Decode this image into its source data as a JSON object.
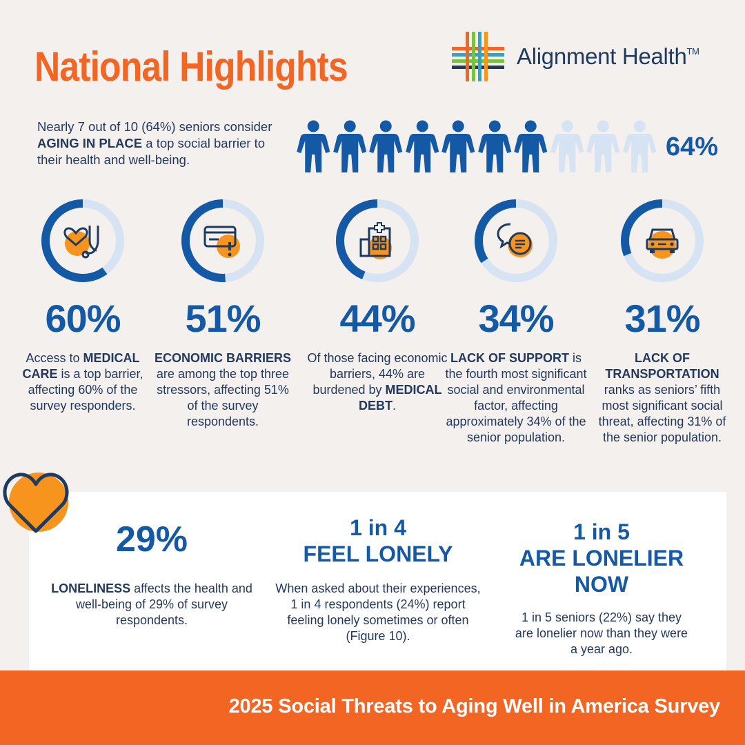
{
  "header": {
    "title": "National Highlights",
    "brand_name": "Alignment Health",
    "brand_tm": "TM"
  },
  "aging_in_place": {
    "text_before": "Nearly 7 out of 10 (64%) seniors consider ",
    "emphasis": "AGING IN PLACE",
    "text_after": " a top social barrier to their health and well-being.",
    "percent_label": "64%",
    "filled_people": 7,
    "total_people": 10
  },
  "stats": [
    {
      "value": "60%",
      "fraction": 0.6,
      "icon": "heart-stethoscope-icon",
      "pre": "Access to ",
      "bold": "MEDICAL CARE",
      "post": " is a top barrier, affecting 60% of the survey responders."
    },
    {
      "value": "51%",
      "fraction": 0.51,
      "icon": "credit-card-alert-icon",
      "pre": "",
      "bold": "ECONOMIC BARRIERS",
      "post": " are among the top three stressors, affecting 51% of the survey respondents."
    },
    {
      "value": "44%",
      "fraction": 0.44,
      "icon": "hospital-icon",
      "pre": "Of those facing economic barriers, 44% are burdened by ",
      "bold": "MEDICAL DEBT",
      "post": "."
    },
    {
      "value": "34%",
      "fraction": 0.34,
      "icon": "chat-bubbles-icon",
      "pre": "",
      "bold": "LACK OF SUPPORT",
      "post": " is the fourth most significant social and environmental factor, affecting approximately 34% of the senior population."
    },
    {
      "value": "31%",
      "fraction": 0.31,
      "icon": "car-icon",
      "pre": "",
      "bold": "LACK OF TRANSPORTATION",
      "post": " ranks as seniors’ fifth most significant social threat, affecting 31% of the senior population."
    }
  ],
  "loneliness": {
    "col1": {
      "head": "29%",
      "bold": "LONELINESS",
      "post": " affects the health and well-being of 29% of survey respondents."
    },
    "col2": {
      "head_line1": "1 in 4",
      "head_line2": "FEEL LONELY",
      "text": "When asked about their experiences, 1 in 4 respondents (24%) report feeling lonely sometimes or often (Figure 10)."
    },
    "col3": {
      "head_line1": "1 in 5",
      "head_line2": "ARE LONELIER NOW",
      "text": "1 in 5 seniors (22%) say they are lonelier now than they were a year ago."
    }
  },
  "footer": {
    "text": "2025 Social Threats to Aging Well in America Survey"
  },
  "colors": {
    "orange": "#f26522",
    "blue": "#1459a5",
    "light_blue": "#d6e3f2",
    "navy": "#23395b",
    "icon_orange": "#f7941d"
  }
}
